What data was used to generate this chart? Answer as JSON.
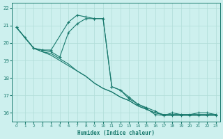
{
  "background_color": "#cdf0ee",
  "grid_color": "#b0ddd8",
  "line_color": "#1a7a6e",
  "xlabel": "Humidex (Indice chaleur)",
  "xlim": [
    -0.5,
    23.5
  ],
  "ylim": [
    15.5,
    22.3
  ],
  "yticks": [
    16,
    17,
    18,
    19,
    20,
    21,
    22
  ],
  "xticks": [
    0,
    1,
    2,
    3,
    4,
    5,
    6,
    7,
    8,
    9,
    10,
    11,
    12,
    13,
    14,
    15,
    16,
    17,
    18,
    19,
    20,
    21,
    22,
    23
  ],
  "series": [
    {
      "x": [
        0,
        1,
        2,
        3,
        4,
        5,
        6,
        7,
        8,
        9,
        10,
        11,
        12,
        13,
        14,
        15,
        16,
        17,
        18,
        19,
        20,
        21,
        22,
        23
      ],
      "y": [
        20.9,
        20.3,
        19.7,
        19.5,
        19.4,
        19.1,
        18.8,
        18.4,
        18.1,
        17.7,
        17.4,
        17.2,
        16.9,
        16.7,
        16.4,
        16.2,
        16.0,
        15.9,
        15.9,
        15.9,
        15.9,
        15.9,
        15.9,
        15.9
      ],
      "markers": false
    },
    {
      "x": [
        0,
        1,
        2,
        3,
        4,
        5,
        6,
        7,
        8,
        9,
        10,
        11,
        12,
        13,
        14,
        15,
        16,
        17,
        18,
        19,
        20,
        21,
        22,
        23
      ],
      "y": [
        20.9,
        20.3,
        19.7,
        19.5,
        19.3,
        19.0,
        18.7,
        18.4,
        18.1,
        17.7,
        17.4,
        17.2,
        16.9,
        16.7,
        16.4,
        16.2,
        16.0,
        15.9,
        15.9,
        15.9,
        15.9,
        15.9,
        15.9,
        15.9
      ],
      "markers": false
    },
    {
      "x": [
        0,
        1,
        2,
        3,
        4,
        6,
        7,
        8,
        9,
        10,
        11,
        12,
        13,
        14,
        15,
        16,
        17,
        18,
        19,
        20,
        21,
        22,
        23
      ],
      "y": [
        20.9,
        20.3,
        19.7,
        19.6,
        19.6,
        21.2,
        21.6,
        21.5,
        21.4,
        21.4,
        17.5,
        17.3,
        16.8,
        16.5,
        16.3,
        16.1,
        15.85,
        16.0,
        15.9,
        15.9,
        16.0,
        16.0,
        15.9
      ],
      "markers": true
    },
    {
      "x": [
        0,
        2,
        3,
        4,
        5,
        6,
        7,
        8,
        9,
        10,
        11,
        12,
        13,
        14,
        15,
        16,
        17,
        18,
        19,
        20,
        21,
        22,
        23
      ],
      "y": [
        20.9,
        19.7,
        19.6,
        19.5,
        19.2,
        20.6,
        21.1,
        21.4,
        21.4,
        21.4,
        17.5,
        17.3,
        16.9,
        16.5,
        16.25,
        15.9,
        15.85,
        15.85,
        15.85,
        15.85,
        15.85,
        15.85,
        15.85
      ],
      "markers": true
    }
  ]
}
